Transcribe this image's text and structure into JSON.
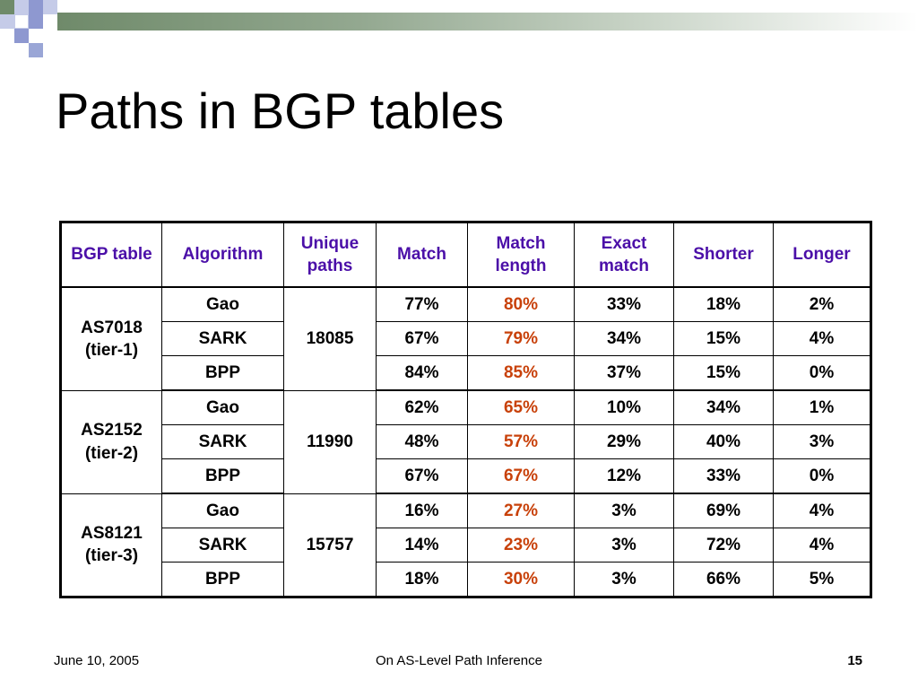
{
  "slide": {
    "title": "Paths in BGP tables"
  },
  "table": {
    "headers": [
      "BGP table",
      "Algorithm",
      "Unique paths",
      "Match",
      "Match length",
      "Exact match",
      "Shorter",
      "Longer"
    ],
    "groups": [
      {
        "name": "AS7018",
        "tier": "(tier-1)",
        "unique_paths": "18085",
        "rows": [
          {
            "algorithm": "Gao",
            "match": "77%",
            "match_length": "80%",
            "exact": "33%",
            "shorter": "18%",
            "longer": "2%"
          },
          {
            "algorithm": "SARK",
            "match": "67%",
            "match_length": "79%",
            "exact": "34%",
            "shorter": "15%",
            "longer": "4%"
          },
          {
            "algorithm": "BPP",
            "match": "84%",
            "match_length": "85%",
            "exact": "37%",
            "shorter": "15%",
            "longer": "0%"
          }
        ]
      },
      {
        "name": "AS2152",
        "tier": "(tier-2)",
        "unique_paths": "11990",
        "rows": [
          {
            "algorithm": "Gao",
            "match": "62%",
            "match_length": "65%",
            "exact": "10%",
            "shorter": "34%",
            "longer": "1%"
          },
          {
            "algorithm": "SARK",
            "match": "48%",
            "match_length": "57%",
            "exact": "29%",
            "shorter": "40%",
            "longer": "3%"
          },
          {
            "algorithm": "BPP",
            "match": "67%",
            "match_length": "67%",
            "exact": "12%",
            "shorter": "33%",
            "longer": "0%"
          }
        ]
      },
      {
        "name": "AS8121",
        "tier": "(tier-3)",
        "unique_paths": "15757",
        "rows": [
          {
            "algorithm": "Gao",
            "match": "16%",
            "match_length": "27%",
            "exact": "3%",
            "shorter": "69%",
            "longer": "4%"
          },
          {
            "algorithm": "SARK",
            "match": "14%",
            "match_length": "23%",
            "exact": "3%",
            "shorter": "72%",
            "longer": "4%"
          },
          {
            "algorithm": "BPP",
            "match": "18%",
            "match_length": "30%",
            "exact": "3%",
            "shorter": "66%",
            "longer": "5%"
          }
        ]
      }
    ]
  },
  "footer": {
    "date": "June 10, 2005",
    "center": "On AS-Level Path Inference",
    "page": "15"
  },
  "colors": {
    "header_text": "#4b0fa8",
    "match_length_text": "#c8410a",
    "deco_green": "#6f8a6a",
    "deco_blue": "#9aa6d6"
  }
}
